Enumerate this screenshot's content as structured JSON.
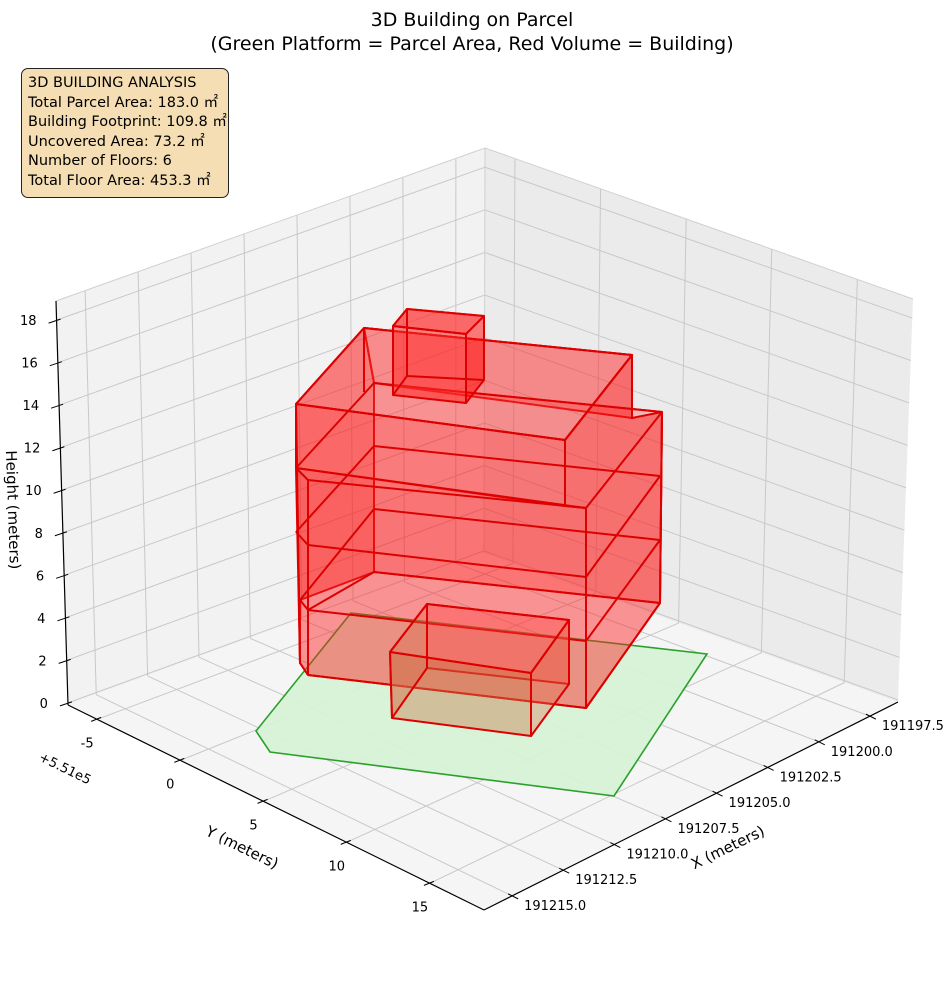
{
  "chart_data": {
    "type": "3d-box",
    "title_line1": "3D Building on Parcel",
    "title_line2": "(Green Platform = Parcel Area, Red Volume = Building)",
    "xlabel": "X (meters)",
    "ylabel": "Y (meters)",
    "zlabel": "Height (meters)",
    "y_offset_label": "+5.51e5",
    "x_ticks": [
      "191197.5",
      "191200.0",
      "191202.5",
      "191205.0",
      "191207.5",
      "191210.0",
      "191212.5",
      "191215.0"
    ],
    "y_ticks": [
      "-5",
      "0",
      "5",
      "10",
      "15"
    ],
    "z_ticks": [
      "0",
      "2",
      "4",
      "6",
      "8",
      "10",
      "12",
      "14",
      "16",
      "18"
    ],
    "series": [
      {
        "name": "Parcel Area",
        "color": "#2ca02c",
        "fill": "#d6f2d6"
      },
      {
        "name": "Building",
        "color": "#e00000",
        "fill": "#ff0000"
      }
    ],
    "grid": true
  },
  "info_box": {
    "heading": "3D BUILDING ANALYSIS",
    "total_parcel_area": "Total Parcel Area: 183.0 ㎡",
    "building_footprint": "Building Footprint: 109.8 ㎡",
    "uncovered_area": "Uncovered Area: 73.2 ㎡",
    "floors": "Number of Floors: 6",
    "total_floor_area": "Total Floor Area: 453.3 ㎡"
  }
}
